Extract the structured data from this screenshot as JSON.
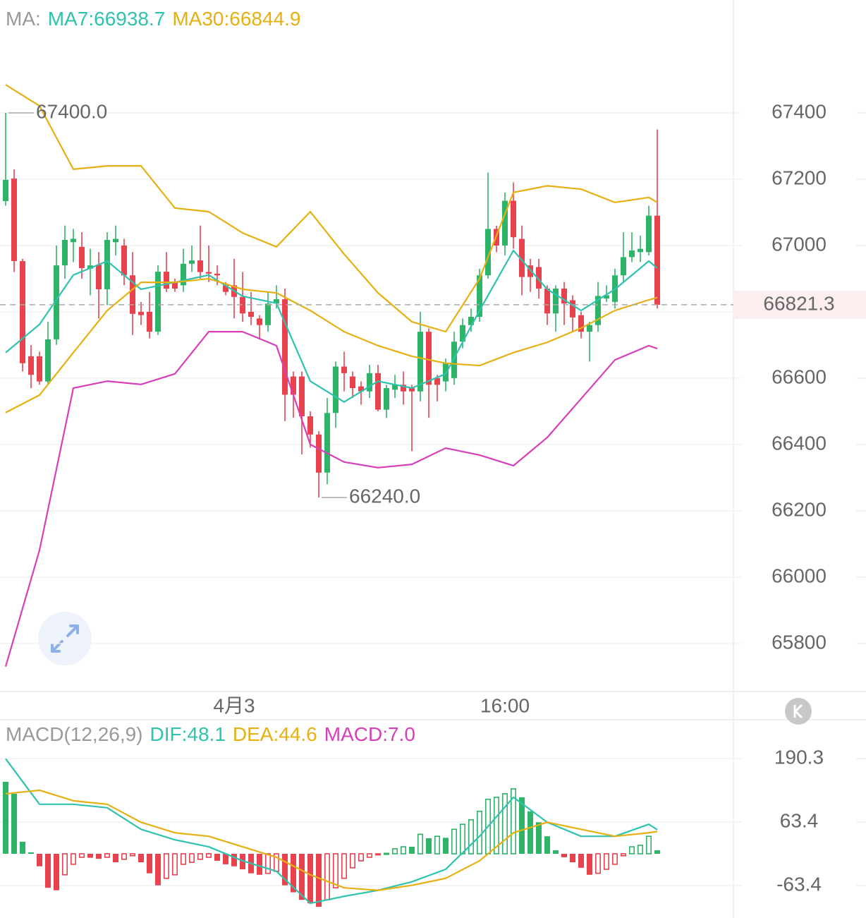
{
  "chart_data": [
    {
      "type": "candlestick",
      "header": {
        "title": "MA:",
        "items": [
          {
            "text": "MA7:66938.7",
            "color": "#2fc2ae"
          },
          {
            "text": "MA30:66844.9",
            "color": "#e6b012"
          }
        ]
      },
      "categories": [
        null,
        null,
        null,
        null,
        null,
        null,
        null,
        null,
        null,
        null,
        null,
        null,
        null,
        null,
        null,
        null,
        null,
        null,
        null,
        null,
        null,
        null,
        null,
        null,
        null,
        null,
        null,
        "4月3",
        null,
        null,
        null,
        null,
        null,
        null,
        null,
        null,
        null,
        null,
        null,
        null,
        null,
        null,
        null,
        null,
        null,
        null,
        null,
        null,
        null,
        null,
        null,
        null,
        null,
        null,
        null,
        null,
        null,
        null,
        null,
        "16:00",
        null,
        null,
        null,
        null,
        null,
        null,
        null,
        null,
        null,
        null,
        null,
        null,
        null,
        null,
        null,
        null,
        null,
        null
      ],
      "open": [
        67134,
        67202,
        66953,
        66666,
        66666,
        66590,
        66717,
        66940,
        67010,
        66996,
        66930,
        66942,
        66868,
        67010,
        67000,
        66910,
        66800,
        66800,
        66740,
        66921,
        66890,
        66880,
        66945,
        66955,
        66920,
        66915,
        66880,
        66880,
        66845,
        66800,
        66780,
        66760,
        66825,
        66838,
        66605,
        66605,
        66485,
        66430,
        66315,
        66495,
        66635,
        66605,
        66575,
        66560,
        66615,
        66505,
        66565,
        66580,
        66570,
        66560,
        66740,
        66600,
        66590,
        66600,
        66710,
        66760,
        66785,
        66910,
        67050,
        67000,
        67135,
        67020,
        66940,
        66935,
        66870,
        66795,
        66870,
        66835,
        66790,
        66740,
        66760,
        66840,
        66830,
        66910,
        66965,
        66980,
        66980,
        67090
      ],
      "high": [
        67400,
        67230,
        66960,
        66700,
        66680,
        66770,
        67000,
        67060,
        67050,
        67040,
        66990,
        66980,
        67040,
        67060,
        67020,
        66980,
        66830,
        66860,
        66940,
        66980,
        66900,
        66990,
        67000,
        67060,
        67000,
        66940,
        66890,
        66960,
        66920,
        66860,
        66790,
        66860,
        66880,
        66870,
        66620,
        66620,
        66500,
        66440,
        66540,
        66650,
        66680,
        66620,
        66590,
        66640,
        66640,
        66580,
        66610,
        66620,
        66580,
        66800,
        66750,
        66610,
        66660,
        66740,
        66780,
        66810,
        66930,
        67220,
        67060,
        67160,
        67190,
        67060,
        66960,
        66960,
        66880,
        66880,
        66890,
        66850,
        66800,
        66770,
        66890,
        66880,
        66930,
        67040,
        67040,
        67030,
        67120,
        67350
      ],
      "low": [
        67120,
        66920,
        66620,
        66570,
        66580,
        66580,
        66700,
        66900,
        66950,
        66900,
        66850,
        66780,
        66820,
        66970,
        66880,
        66730,
        66760,
        66720,
        66730,
        66860,
        66860,
        66860,
        66920,
        66900,
        66890,
        66880,
        66850,
        66780,
        66770,
        66760,
        66720,
        66740,
        66810,
        66470,
        66480,
        66370,
        66390,
        66240,
        66280,
        66450,
        66560,
        66540,
        66520,
        66540,
        66500,
        66480,
        66540,
        66520,
        66380,
        66530,
        66480,
        66530,
        66560,
        66580,
        66690,
        66740,
        66770,
        66900,
        66980,
        66970,
        66990,
        66850,
        66860,
        66840,
        66760,
        66740,
        66760,
        66740,
        66720,
        66650,
        66740,
        66830,
        66810,
        66890,
        66950,
        66950,
        66970,
        66810
      ],
      "close": [
        67198,
        66953,
        66645,
        66610,
        66590,
        66717,
        66940,
        67017,
        67020,
        66932,
        66940,
        66868,
        67017,
        67020,
        66910,
        66794,
        66790,
        66740,
        66921,
        66870,
        66870,
        66945,
        66955,
        66920,
        66915,
        66910,
        66860,
        66845,
        66795,
        66785,
        66760,
        66825,
        66838,
        66550,
        66550,
        66485,
        66430,
        66315,
        66495,
        66635,
        66615,
        66570,
        66560,
        66615,
        66505,
        66570,
        66580,
        66560,
        66560,
        66740,
        66580,
        66580,
        66645,
        66710,
        66760,
        66785,
        66910,
        67050,
        67000,
        67135,
        67025,
        66905,
        66905,
        66870,
        66795,
        66870,
        66825,
        66783,
        66740,
        66760,
        66848,
        66850,
        66910,
        66965,
        66985,
        66990,
        67090,
        66821.3
      ],
      "up_color": "#2db468",
      "down_color": "#e8424f",
      "series": [
        {
          "color": "#e6b012",
          "x": [
            0,
            4,
            8,
            12,
            16,
            20,
            24,
            28,
            32,
            36,
            40,
            44,
            48,
            52,
            56,
            60,
            64,
            68,
            72,
            76,
            77
          ],
          "values": [
            67485,
            67421,
            67230,
            67240,
            67240,
            67113,
            67102,
            67038,
            66996,
            67102,
            66974,
            66857,
            66770,
            66740,
            66900,
            67160,
            67180,
            67170,
            67130,
            67145,
            67130
          ]
        },
        {
          "color": "#d63fb8",
          "x": [
            0,
            4,
            8,
            12,
            16,
            20,
            24,
            28,
            32,
            36,
            40,
            44,
            48,
            52,
            56,
            60,
            64,
            68,
            72,
            76,
            77
          ],
          "values": [
            65730,
            66081,
            66570,
            66591,
            66581,
            66613,
            66740,
            66740,
            66698,
            66400,
            66347,
            66330,
            66340,
            66389,
            66368,
            66336,
            66421,
            66538,
            66655,
            66698,
            66689
          ]
        },
        {
          "color": "#2fc2ae",
          "x": [
            0,
            4,
            8,
            12,
            16,
            20,
            24,
            28,
            32,
            36,
            40,
            44,
            48,
            52,
            56,
            60,
            64,
            68,
            72,
            76,
            77
          ],
          "values": [
            66677,
            66762,
            66911,
            66953,
            66868,
            66889,
            66911,
            66847,
            66826,
            66591,
            66528,
            66591,
            66570,
            66613,
            66804,
            66985,
            66868,
            66804,
            66868,
            66953,
            66932
          ]
        },
        {
          "color": "#e6b012",
          "x": [
            0,
            4,
            8,
            12,
            16,
            20,
            24,
            28,
            32,
            36,
            40,
            44,
            48,
            52,
            56,
            60,
            64,
            68,
            72,
            76,
            77
          ],
          "values": [
            66496,
            66549,
            66677,
            66804,
            66889,
            66889,
            66900,
            66868,
            66857,
            66804,
            66740,
            66698,
            66666,
            66645,
            66638,
            66677,
            66708,
            66751,
            66804,
            66836,
            66843
          ]
        }
      ],
      "max_mark": {
        "value": 67400,
        "label": "67400.0"
      },
      "min_mark": {
        "value": 66240,
        "label": "66240.0"
      },
      "last_price": 66821.3,
      "ylim": [
        65655,
        67634
      ],
      "yticks": [
        65800,
        66000,
        66200,
        66400,
        66600,
        66800,
        67000,
        67200,
        67400
      ],
      "grid": true
    },
    {
      "type": "bar",
      "header": {
        "title": "MACD(12,26,9)",
        "items": [
          {
            "text": "DIF:48.1",
            "color": "#2fc2ae"
          },
          {
            "text": "DEA:44.6",
            "color": "#e6b012"
          },
          {
            "text": "MACD:7.0",
            "color": "#d63fb8"
          }
        ]
      },
      "values": [
        144,
        120,
        24,
        3,
        -25,
        -68,
        -73,
        -42,
        -21,
        -7,
        -8,
        -10,
        -7,
        -17,
        -11,
        -4,
        -17,
        -39,
        -63,
        -49,
        -42,
        -21,
        -17,
        -11,
        -7,
        -14,
        -21,
        -25,
        -31,
        -39,
        -42,
        -39,
        -35,
        -63,
        -77,
        -92,
        -99,
        -106,
        -92,
        -68,
        -49,
        -28,
        -14,
        -7,
        -1,
        1,
        10,
        14,
        14,
        39,
        31,
        35,
        32,
        49,
        59,
        68,
        85,
        109,
        113,
        120,
        130,
        113,
        85,
        63,
        35,
        7,
        -7,
        -17,
        -28,
        -42,
        -39,
        -31,
        -21,
        -4,
        14,
        17,
        35,
        7
      ],
      "up_color": "#2db468",
      "down_color": "#e8424f",
      "series": [
        {
          "color": "#2fc2ae",
          "x": [
            0,
            4,
            8,
            12,
            16,
            20,
            24,
            28,
            32,
            36,
            40,
            44,
            48,
            52,
            56,
            60,
            64,
            68,
            72,
            76,
            77
          ],
          "values": [
            190,
            99,
            99,
            92,
            49,
            28,
            14,
            -14,
            -35,
            -99,
            -85,
            -73,
            -56,
            -31,
            35,
            113,
            63,
            35,
            35,
            59,
            48.1
          ]
        },
        {
          "color": "#e6b012",
          "x": [
            0,
            4,
            8,
            12,
            16,
            20,
            24,
            28,
            32,
            36,
            40,
            44,
            48,
            52,
            56,
            60,
            64,
            68,
            72,
            76,
            77
          ],
          "values": [
            120,
            127,
            106,
            99,
            63,
            42,
            35,
            14,
            -7,
            -42,
            -68,
            -73,
            -63,
            -49,
            -14,
            42,
            63,
            49,
            35,
            42,
            44.6
          ]
        }
      ],
      "ylim": [
        -119.9,
        211.6
      ],
      "yticks": [
        -63.4,
        63.4,
        190.3
      ],
      "grid": true
    }
  ]
}
